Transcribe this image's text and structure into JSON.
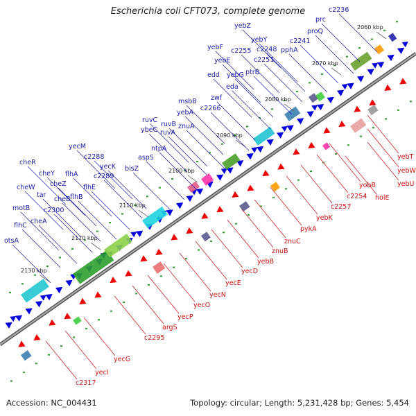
{
  "title": "Escherichia coli CFT073, complete genome",
  "accession_text": "Accession: NC_004431",
  "summary_text": "Topology: circular; Length: 5,231,428 bp; Genes: 5,454",
  "colors": {
    "forward_genes": "#0000dd",
    "reverse_genes": "#ee0000",
    "forward_label": "#1a1aa8",
    "reverse_label": "#cc1111",
    "backbone": "#777777"
  },
  "ticks": [
    "2060 kbp",
    "2070 kbp",
    "2080 kbp",
    "2090 kbp",
    "2100 kbp",
    "2110 kbp",
    "2120 kbp",
    "2130 kbp"
  ],
  "forward_labels": [
    "c2236",
    "prc",
    "proQ",
    "c2241",
    "pphA",
    "yebZ",
    "yebY",
    "c2248",
    "c2255",
    "c2251",
    "yebF",
    "yebE",
    "ptrB",
    "edd",
    "yebG",
    "eda",
    "msbB",
    "zwf",
    "c2266",
    "yebA",
    "znuA",
    "ruvC",
    "ruvB",
    "ybeC",
    "ruvA",
    "ntpA",
    "aspS",
    "bisZ",
    "yecM",
    "c2288",
    "yecK",
    "c2289",
    "cheR",
    "cheY",
    "flhA",
    "flhE",
    "cheZ",
    "cheW",
    "tar",
    "cheB",
    "flhB",
    "c2300",
    "motB",
    "cheA",
    "flhC",
    "otsA"
  ],
  "reverse_labels": [
    "yebT",
    "yebW",
    "yebU",
    "yobB",
    "holE",
    "c2254",
    "c2257",
    "yebK",
    "pykA",
    "znuC",
    "znuB",
    "yebB",
    "yecD",
    "yecE",
    "yecN",
    "yecO",
    "yecP",
    "argS",
    "c2295",
    "yecG",
    "yecI",
    "c2317"
  ]
}
